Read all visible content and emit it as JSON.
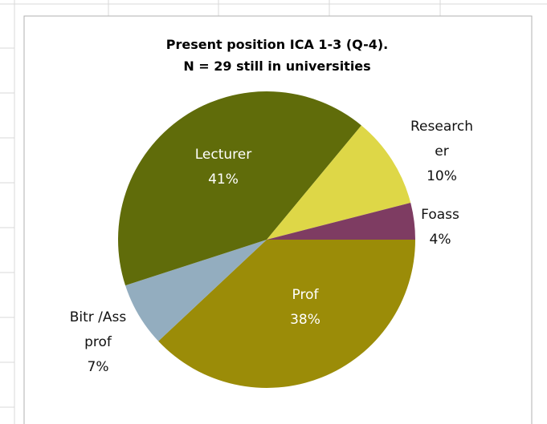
{
  "chart_data": {
    "type": "pie",
    "title": "Present position ICA 1-3 (Q-4).",
    "subtitle": "N = 29 still in universities",
    "categories": [
      "Prof",
      "Bitr /Ass prof",
      "Lecturer",
      "Researcher",
      "Foass"
    ],
    "values": [
      38,
      7,
      41,
      10,
      4
    ],
    "value_labels": [
      "38%",
      "7%",
      "41%",
      "10%",
      "4%"
    ],
    "colors": [
      "#9b8c08",
      "#93adbf",
      "#606c0a",
      "#ded747",
      "#7e3c62"
    ]
  }
}
